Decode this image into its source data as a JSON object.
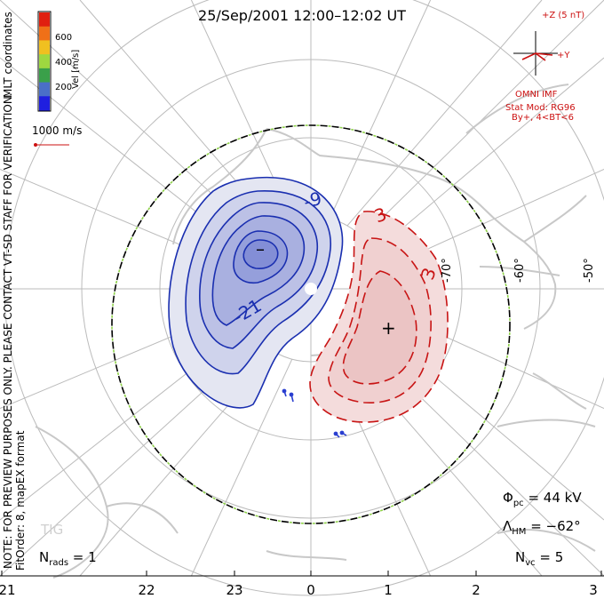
{
  "title": "25/Sep/2001 12:00–12:02 UT",
  "coords_label": "MLT coordinates",
  "colorbar": {
    "unit_label": "Vel [m/s]",
    "ticks": [
      "600",
      "400",
      "200"
    ],
    "colors": [
      "#1f1fe0",
      "#4a6fc8",
      "#3aa04a",
      "#9fd840",
      "#f0c020",
      "#f07018",
      "#e02010"
    ]
  },
  "vector_scale": "1000 m/s",
  "imf": {
    "z_label": "+Z (5 nT)",
    "y_label": "+Y",
    "source": "OMNI IMF",
    "model_line1": "Stat Mod: RG96",
    "model_line2": "By+, 4<BT<6"
  },
  "notes": {
    "preview": "NOTE: FOR PREVIEW PURPOSES ONLY. PLEASE CONTACT VT-SD STAFF FOR VERIFICATION.",
    "fitorder": "FitOrder: 8, mapEX format"
  },
  "contours": {
    "negative_labels": [
      "-9",
      "-21"
    ],
    "positive_labels": [
      "3",
      "3"
    ],
    "min_marker": "–",
    "max_marker": "+",
    "negative_color": "#1a2fb0",
    "positive_color": "#c81414"
  },
  "lat_labels": [
    "-70°",
    "-60°",
    "-50°"
  ],
  "stats": {
    "phi_pc": "Φ",
    "phi_sub": "pc",
    "phi_val": " = 44 kV",
    "lambda": "Λ",
    "lambda_sub": "HM",
    "lambda_val": " = −62°",
    "n_rads": "N",
    "n_rads_sub": "rads",
    "n_rads_val": " = 1",
    "n_vc": "N",
    "n_vc_sub": "vc",
    "n_vc_val": " = 5"
  },
  "watermark": "TIG",
  "mlt_axis": [
    "21",
    "22",
    "23",
    "0",
    "1",
    "2",
    "3"
  ]
}
